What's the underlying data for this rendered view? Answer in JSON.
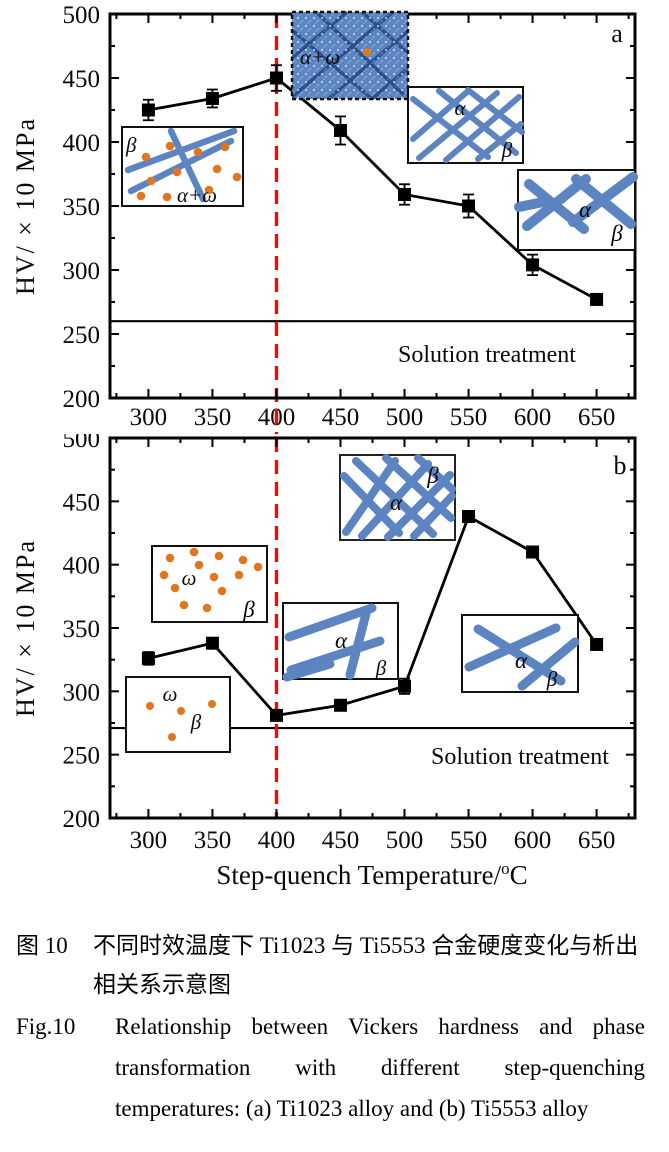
{
  "x_axis": {
    "title_main": "Step-quench Temperature/",
    "title_sup": "o",
    "title_unit": "C"
  },
  "chart_data": [
    {
      "type": "line",
      "panel_letter": "a",
      "alloy": "Ti1023",
      "x": [
        300,
        350,
        400,
        450,
        500,
        550,
        600,
        650
      ],
      "y": [
        425,
        434,
        450,
        409,
        359,
        350,
        304,
        277
      ],
      "y_err": [
        8,
        7,
        10,
        11,
        8,
        9,
        8,
        4
      ],
      "solution_treatment_level": 260,
      "solution_label": "Solution treatment",
      "dashed_line_x": 400,
      "xlim": [
        270,
        680
      ],
      "ylim": [
        200,
        500
      ],
      "x_ticks": [
        300,
        350,
        400,
        450,
        500,
        550,
        600,
        650
      ],
      "y_ticks": [
        200,
        250,
        300,
        350,
        400,
        450,
        500
      ],
      "minor_step": 25,
      "ylabel": "HV/ × 10 MPa",
      "xlabel": "Step-quench Temperature/°C",
      "grid": "off",
      "marker": "filled-square",
      "insets": {
        "dots": {
          "beta": "β",
          "label": "α+ω"
        },
        "speckled": {
          "label": "α+ω"
        },
        "hash": {
          "alpha": "α",
          "beta": "β"
        },
        "cross": {
          "alpha": "α",
          "beta": "β"
        }
      }
    },
    {
      "type": "line",
      "panel_letter": "b",
      "alloy": "Ti5553",
      "x": [
        300,
        350,
        400,
        450,
        500,
        550,
        600,
        650
      ],
      "y": [
        326,
        338,
        281,
        289,
        304,
        438,
        410,
        337
      ],
      "y_err": [
        5,
        4,
        3,
        3,
        6,
        4,
        4,
        3
      ],
      "solution_treatment_level": 271,
      "solution_label": "Solution treatment",
      "dashed_line_x": 400,
      "xlim": [
        270,
        680
      ],
      "ylim": [
        200,
        500
      ],
      "x_ticks": [
        300,
        350,
        400,
        450,
        500,
        550,
        600,
        650
      ],
      "y_ticks": [
        200,
        250,
        300,
        350,
        400,
        450,
        500
      ],
      "minor_step": 25,
      "ylabel": "HV/ × 10 MPa",
      "xlabel": "Step-quench Temperature/°C",
      "grid": "off",
      "marker": "filled-square",
      "insets": {
        "hatch": {
          "alpha": "α",
          "beta": "β"
        },
        "omega_upper": {
          "omega": "ω",
          "beta": "β"
        },
        "omega_lower": {
          "omega": "ω",
          "beta": "β"
        },
        "laths": {
          "alpha": "α",
          "beta": "β"
        },
        "cross": {
          "alpha": "α",
          "beta": "β"
        }
      }
    }
  ],
  "caption": {
    "zh_label": "图 10",
    "zh_line1": "不同时效温度下 Ti1023 与 Ti5553 合金硬度变化与析出",
    "zh_line2": "相关系示意图",
    "en_label": "Fig.10",
    "en_line1": "Relationship between Vickers hardness and phase",
    "en_line2": "transformation with different step-quenching",
    "en_line3": "temperatures: (a) Ti1023 alloy and (b) Ti5553 alloy"
  },
  "colors": {
    "accent_red": "#f90606",
    "phase_blue": "#5b84c1",
    "phase_blue_dark": "#2b4e8e",
    "speckled_fill": "#5c86c2",
    "omega_orange": "#e0771f",
    "series_black": "#000000"
  }
}
